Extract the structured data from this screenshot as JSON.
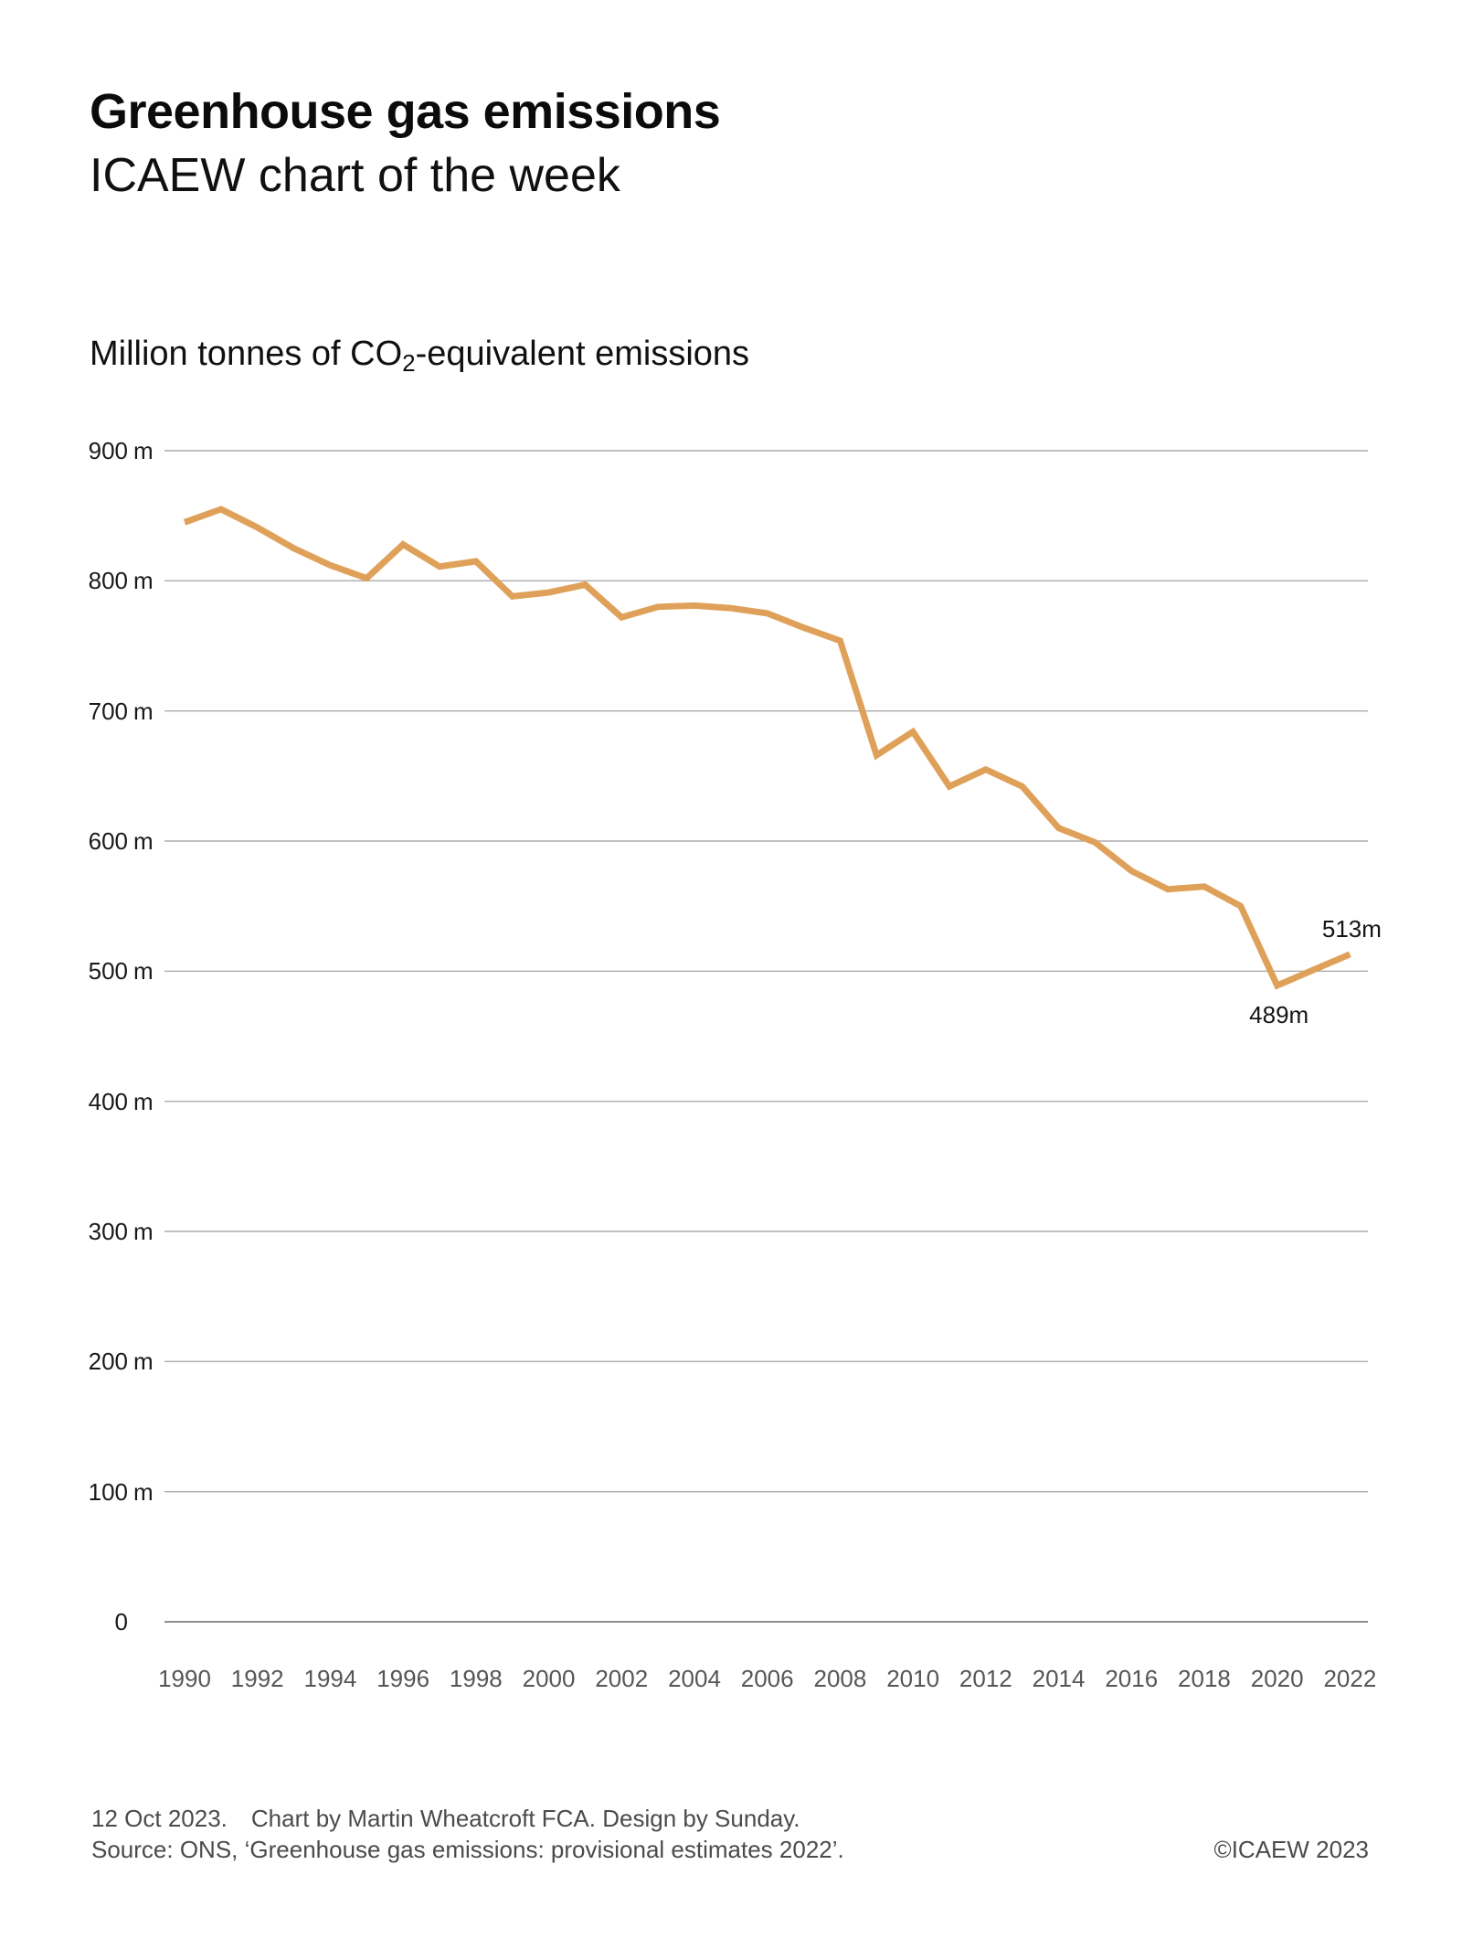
{
  "header": {
    "title": "Greenhouse gas emissions",
    "subtitle": "ICAEW chart of the week"
  },
  "axis_title": {
    "prefix": "Million tonnes of CO",
    "subscript": "2",
    "suffix": "-equivalent emissions"
  },
  "chart_data": {
    "type": "line",
    "title": "Greenhouse gas emissions",
    "ylabel": "Million tonnes of CO2-equivalent emissions",
    "x": [
      1990,
      1991,
      1992,
      1993,
      1994,
      1995,
      1996,
      1997,
      1998,
      1999,
      2000,
      2001,
      2002,
      2003,
      2004,
      2005,
      2006,
      2007,
      2008,
      2009,
      2010,
      2011,
      2012,
      2013,
      2014,
      2015,
      2016,
      2017,
      2018,
      2019,
      2020,
      2021,
      2022
    ],
    "values": [
      845,
      855,
      841,
      825,
      812,
      802,
      828,
      811,
      815,
      788,
      791,
      797,
      772,
      780,
      781,
      779,
      775,
      764,
      754,
      666,
      684,
      642,
      655,
      642,
      610,
      599,
      577,
      563,
      565,
      550,
      489,
      501,
      513
    ],
    "ylim": [
      0,
      900
    ],
    "ytick_step": 100,
    "ytick_unit": "m",
    "ytick_zero_label": "0",
    "xticks": [
      1990,
      1992,
      1994,
      1996,
      1998,
      2000,
      2002,
      2004,
      2006,
      2008,
      2010,
      2012,
      2014,
      2016,
      2018,
      2020,
      2022
    ],
    "grid": true,
    "legend_position": "none",
    "line_color": "#DFA159",
    "gridline_color": "#ababab",
    "zero_line_color": "#8f8f8f",
    "annotations": [
      {
        "x": 2020,
        "value": 489,
        "label": "489m",
        "placement": "below"
      },
      {
        "x": 2022,
        "value": 513,
        "label": "513m",
        "placement": "above"
      }
    ]
  },
  "footer": {
    "date": "12 Oct 2023.",
    "credit": "Chart by Martin Wheatcroft FCA. Design by Sunday.",
    "source": "Source: ONS, ‘Greenhouse gas emissions: provisional estimates 2022’.",
    "copyright": "©ICAEW 2023"
  }
}
